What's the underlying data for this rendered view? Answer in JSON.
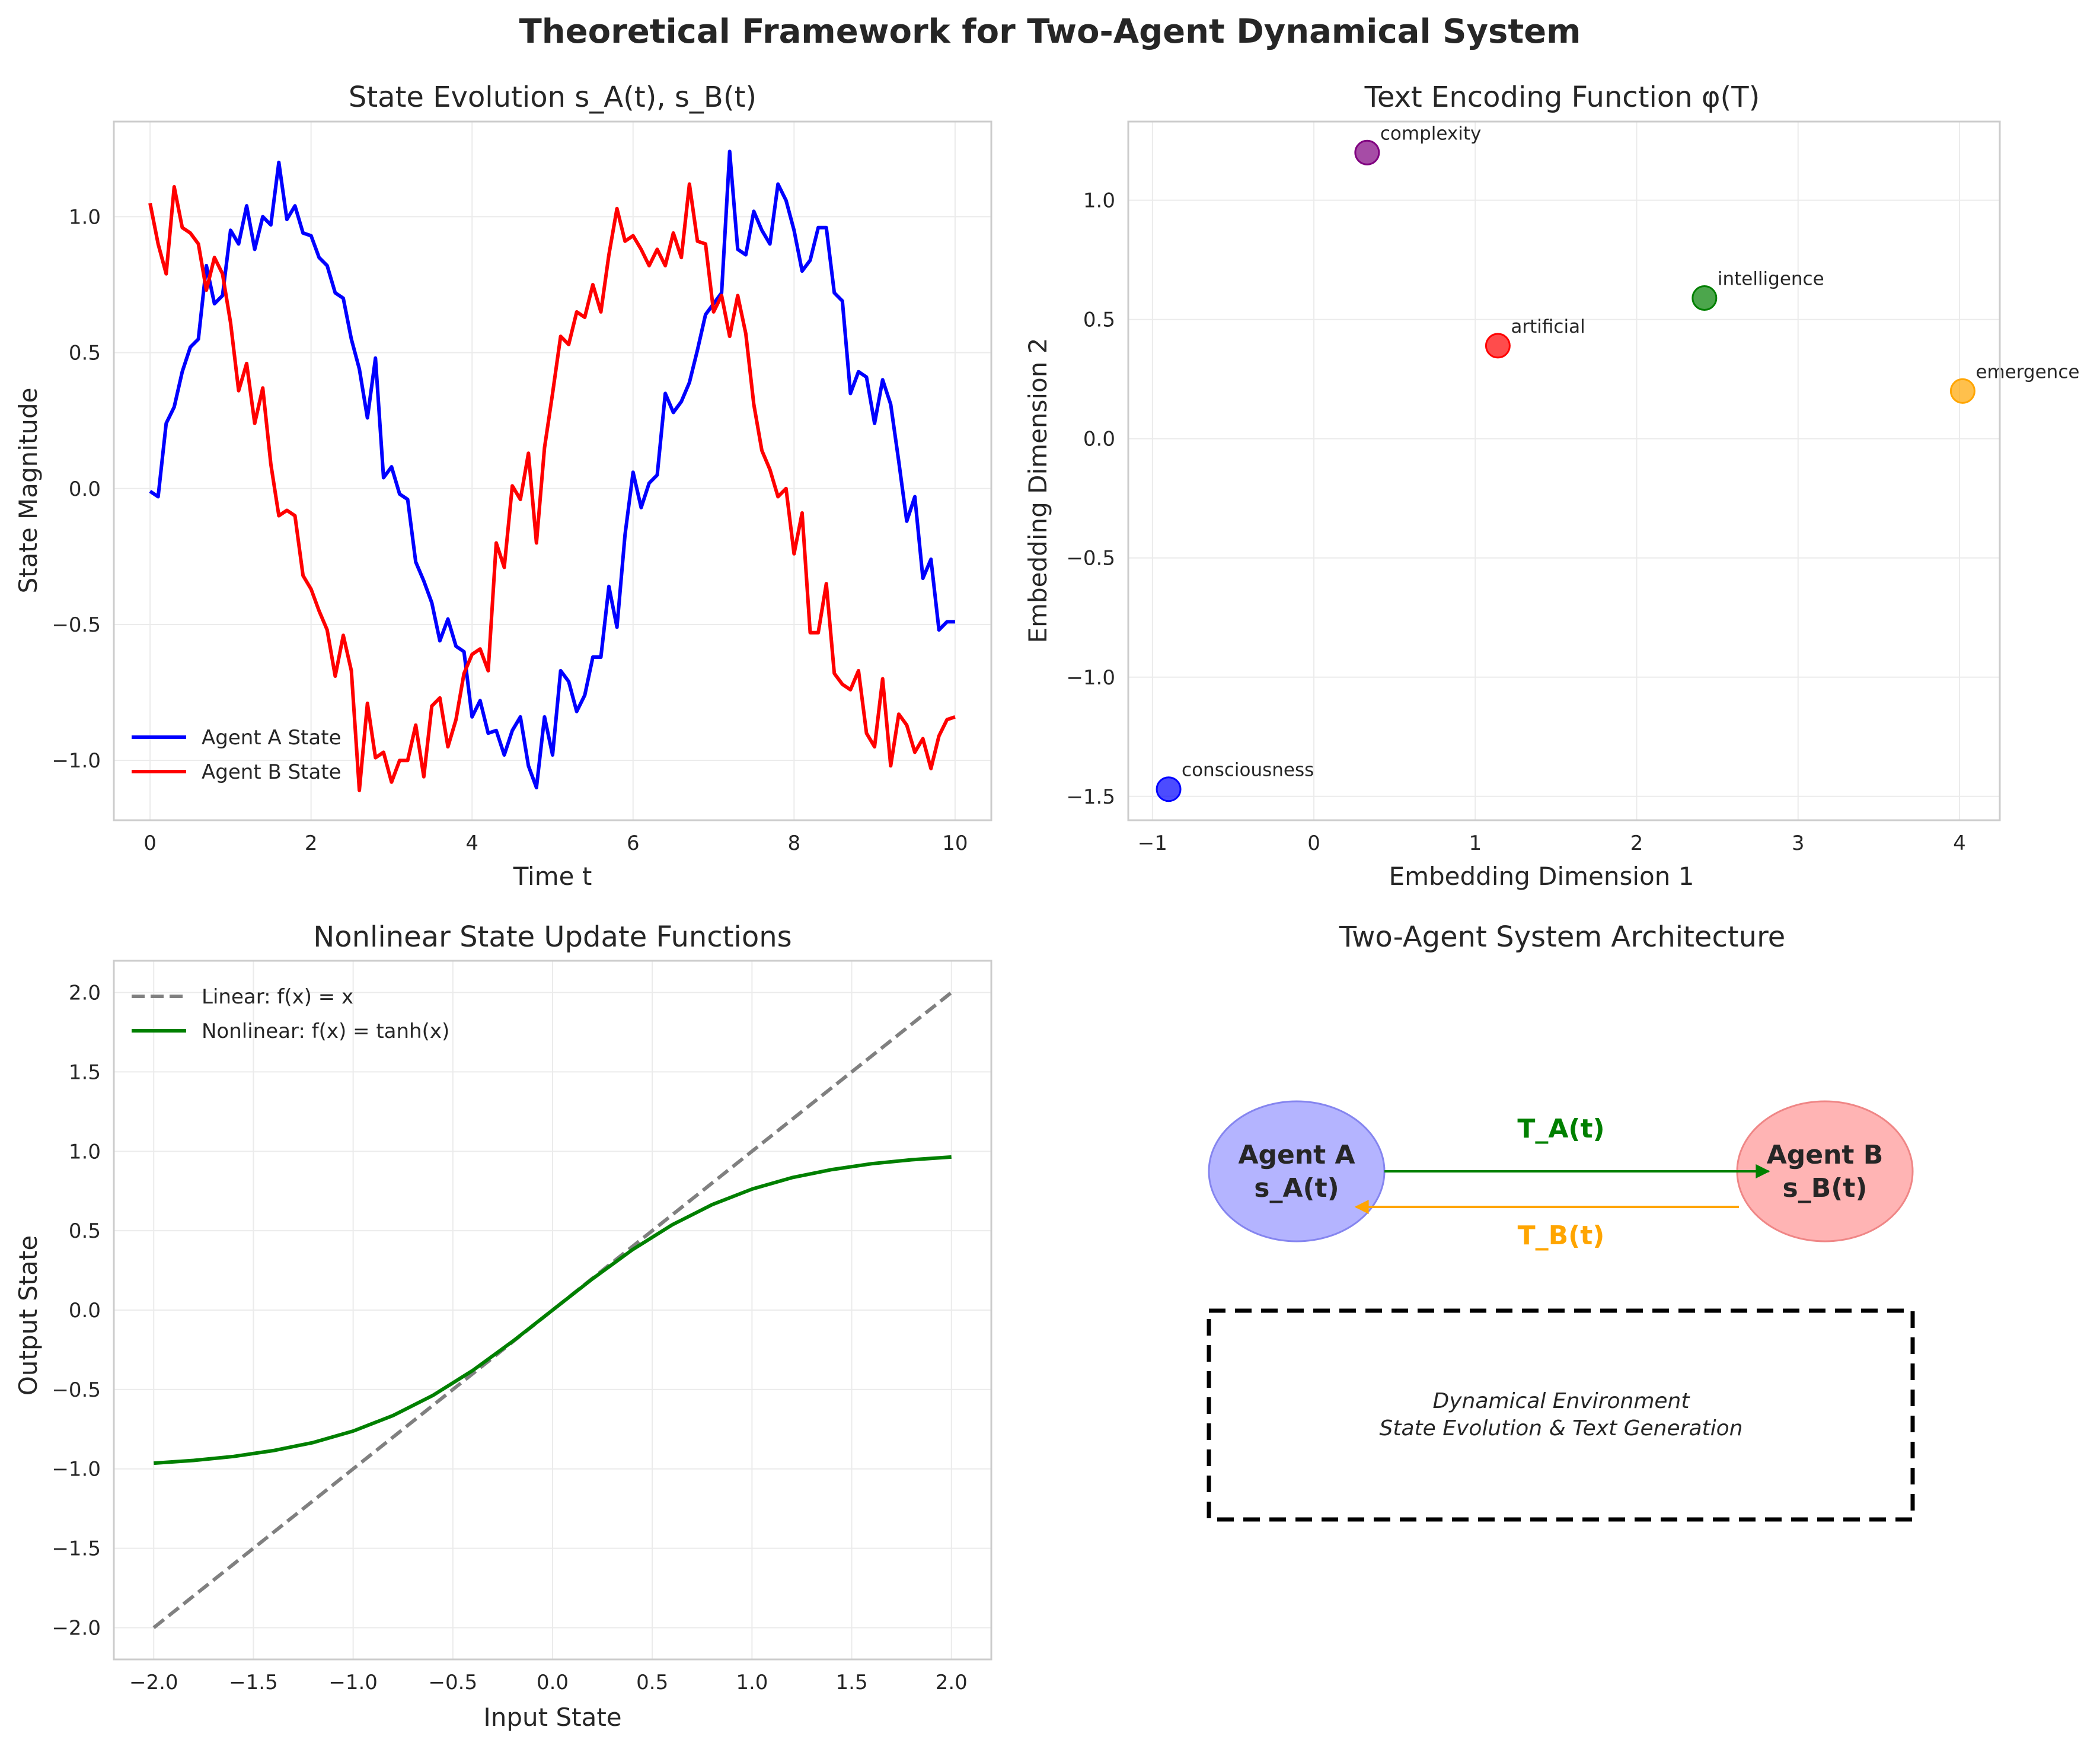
{
  "suptitle": "Theoretical Framework for Two-Agent Dynamical System",
  "chart_data": [
    {
      "id": "state",
      "type": "line",
      "title": "State Evolution s_A(t), s_B(t)",
      "xlabel": "Time t",
      "ylabel": "State Magnitude",
      "xlim": [
        -0.45,
        10.45
      ],
      "ylim": [
        -1.22,
        1.35
      ],
      "xticks": [
        0,
        2,
        4,
        6,
        8,
        10
      ],
      "yticks": [
        -1.0,
        -0.5,
        0.0,
        0.5,
        1.0
      ],
      "grid": true,
      "legend": "lower-left",
      "series": [
        {
          "name": "Agent A State",
          "color": "#0000ff",
          "x": [
            0.0,
            0.1,
            0.2,
            0.3,
            0.4,
            0.5,
            0.6,
            0.7,
            0.8,
            0.9,
            1.0,
            1.1,
            1.2,
            1.3,
            1.4,
            1.5,
            1.6,
            1.7,
            1.8,
            1.9,
            2.0,
            2.1,
            2.2,
            2.3,
            2.4,
            2.5,
            2.6,
            2.7,
            2.8,
            2.9,
            3.0,
            3.1,
            3.2,
            3.3,
            3.4,
            3.5,
            3.6,
            3.7,
            3.8,
            3.9,
            4.0,
            4.1,
            4.2,
            4.3,
            4.4,
            4.5,
            4.6,
            4.7,
            4.8,
            4.9,
            5.0,
            5.1,
            5.2,
            5.3,
            5.4,
            5.5,
            5.6,
            5.7,
            5.8,
            5.9,
            6.0,
            6.1,
            6.2,
            6.3,
            6.4,
            6.5,
            6.6,
            6.7,
            6.8,
            6.9,
            7.0,
            7.1,
            7.2,
            7.3,
            7.4,
            7.5,
            7.6,
            7.7,
            7.8,
            7.9,
            8.0,
            8.1,
            8.2,
            8.3,
            8.4,
            8.5,
            8.6,
            8.7,
            8.8,
            8.9,
            9.0,
            9.1,
            9.2,
            9.3,
            9.4,
            9.5,
            9.6,
            9.7,
            9.8,
            9.9,
            10.0
          ],
          "y": [
            -0.01,
            -0.03,
            0.24,
            0.3,
            0.43,
            0.52,
            0.55,
            0.82,
            0.68,
            0.71,
            0.95,
            0.9,
            1.04,
            0.88,
            1.0,
            0.97,
            1.2,
            0.99,
            1.04,
            0.94,
            0.93,
            0.85,
            0.82,
            0.72,
            0.7,
            0.55,
            0.44,
            0.26,
            0.48,
            0.04,
            0.08,
            -0.02,
            -0.04,
            -0.27,
            -0.34,
            -0.42,
            -0.56,
            -0.48,
            -0.58,
            -0.6,
            -0.84,
            -0.78,
            -0.9,
            -0.89,
            -0.98,
            -0.89,
            -0.84,
            -1.02,
            -1.1,
            -0.84,
            -0.98,
            -0.67,
            -0.71,
            -0.82,
            -0.76,
            -0.62,
            -0.62,
            -0.36,
            -0.51,
            -0.17,
            0.06,
            -0.07,
            0.02,
            0.05,
            0.35,
            0.28,
            0.32,
            0.39,
            0.51,
            0.64,
            0.68,
            0.72,
            1.24,
            0.88,
            0.86,
            1.02,
            0.95,
            0.9,
            1.12,
            1.06,
            0.95,
            0.8,
            0.84,
            0.96,
            0.96,
            0.72,
            0.69,
            0.35,
            0.43,
            0.41,
            0.24,
            0.4,
            0.31,
            0.1,
            -0.12,
            -0.03,
            -0.33,
            -0.26,
            -0.52,
            -0.49,
            -0.49
          ]
        },
        {
          "name": "Agent B State",
          "color": "#ff0000",
          "x": [
            0.0,
            0.1,
            0.2,
            0.3,
            0.4,
            0.5,
            0.6,
            0.7,
            0.8,
            0.9,
            1.0,
            1.1,
            1.2,
            1.3,
            1.4,
            1.5,
            1.6,
            1.7,
            1.8,
            1.9,
            2.0,
            2.1,
            2.2,
            2.3,
            2.4,
            2.5,
            2.6,
            2.7,
            2.8,
            2.9,
            3.0,
            3.1,
            3.2,
            3.3,
            3.4,
            3.5,
            3.6,
            3.7,
            3.8,
            3.9,
            4.0,
            4.1,
            4.2,
            4.3,
            4.4,
            4.5,
            4.6,
            4.7,
            4.8,
            4.9,
            5.0,
            5.1,
            5.2,
            5.3,
            5.4,
            5.5,
            5.6,
            5.7,
            5.8,
            5.9,
            6.0,
            6.1,
            6.2,
            6.3,
            6.4,
            6.5,
            6.6,
            6.7,
            6.8,
            6.9,
            7.0,
            7.1,
            7.2,
            7.3,
            7.4,
            7.5,
            7.6,
            7.7,
            7.8,
            7.9,
            8.0,
            8.1,
            8.2,
            8.3,
            8.4,
            8.5,
            8.6,
            8.7,
            8.8,
            8.9,
            9.0,
            9.1,
            9.2,
            9.3,
            9.4,
            9.5,
            9.6,
            9.7,
            9.8,
            9.9,
            10.0
          ],
          "y": [
            1.05,
            0.9,
            0.79,
            1.11,
            0.96,
            0.94,
            0.9,
            0.73,
            0.85,
            0.79,
            0.61,
            0.36,
            0.46,
            0.24,
            0.37,
            0.09,
            -0.1,
            -0.08,
            -0.1,
            -0.32,
            -0.37,
            -0.45,
            -0.52,
            -0.69,
            -0.54,
            -0.67,
            -1.11,
            -0.79,
            -0.99,
            -0.97,
            -1.08,
            -1.0,
            -1.0,
            -0.87,
            -1.06,
            -0.8,
            -0.77,
            -0.95,
            -0.85,
            -0.68,
            -0.61,
            -0.59,
            -0.67,
            -0.2,
            -0.29,
            0.01,
            -0.04,
            0.13,
            -0.2,
            0.15,
            0.35,
            0.56,
            0.53,
            0.65,
            0.63,
            0.75,
            0.65,
            0.86,
            1.03,
            0.91,
            0.93,
            0.88,
            0.82,
            0.88,
            0.82,
            0.94,
            0.85,
            1.12,
            0.91,
            0.9,
            0.65,
            0.71,
            0.56,
            0.71,
            0.57,
            0.31,
            0.14,
            0.07,
            -0.03,
            0.0,
            -0.24,
            -0.09,
            -0.53,
            -0.53,
            -0.35,
            -0.68,
            -0.72,
            -0.74,
            -0.67,
            -0.9,
            -0.95,
            -0.7,
            -1.02,
            -0.83,
            -0.87,
            -0.97,
            -0.92,
            -1.03,
            -0.91,
            -0.85,
            -0.84
          ]
        }
      ]
    },
    {
      "id": "embed",
      "type": "scatter",
      "title": "Text Encoding Function φ(T)",
      "xlabel": "Embedding Dimension 1",
      "ylabel": "Embedding Dimension 2",
      "xlim": [
        -1.15,
        4.25
      ],
      "ylim": [
        -1.6,
        1.33
      ],
      "xticks": [
        -1,
        0,
        1,
        2,
        3,
        4
      ],
      "yticks": [
        -1.5,
        -1.0,
        -0.5,
        0.0,
        0.5,
        1.0
      ],
      "grid": true,
      "points": [
        {
          "label": "consciousness",
          "x": -0.9,
          "y": -1.47,
          "color": "#0000ff"
        },
        {
          "label": "emergence",
          "x": 4.02,
          "y": 0.2,
          "color": "#ffa500"
        },
        {
          "label": "artificial",
          "x": 1.14,
          "y": 0.39,
          "color": "#ff0000"
        },
        {
          "label": "intelligence",
          "x": 2.42,
          "y": 0.59,
          "color": "#008000"
        },
        {
          "label": "complexity",
          "x": 0.33,
          "y": 1.2,
          "color": "#800080"
        }
      ]
    },
    {
      "id": "update",
      "type": "line",
      "title": "Nonlinear State Update Functions",
      "xlabel": "Input State",
      "ylabel": "Output State",
      "xlim": [
        -2.2,
        2.2
      ],
      "ylim": [
        -2.2,
        2.2
      ],
      "xticks": [
        -2.0,
        -1.5,
        -1.0,
        -0.5,
        0.0,
        0.5,
        1.0,
        1.5,
        2.0
      ],
      "yticks": [
        -2.0,
        -1.5,
        -1.0,
        -0.5,
        0.0,
        0.5,
        1.0,
        1.5,
        2.0
      ],
      "grid": true,
      "legend": "top-left",
      "series": [
        {
          "name": "Linear: f(x) = x",
          "color": "#808080",
          "dash": true,
          "x": [
            -2.0,
            2.0
          ],
          "y": [
            -2.0,
            2.0
          ]
        },
        {
          "name": "Nonlinear: f(x) = tanh(x)",
          "color": "#008000",
          "dash": false,
          "x": [
            -2.0,
            -1.8,
            -1.6,
            -1.4,
            -1.2,
            -1.0,
            -0.8,
            -0.6,
            -0.4,
            -0.2,
            0.0,
            0.2,
            0.4,
            0.6,
            0.8,
            1.0,
            1.2,
            1.4,
            1.6,
            1.8,
            2.0
          ],
          "y": [
            -0.964,
            -0.947,
            -0.922,
            -0.885,
            -0.834,
            -0.762,
            -0.664,
            -0.537,
            -0.38,
            -0.197,
            0.0,
            0.197,
            0.38,
            0.537,
            0.664,
            0.762,
            0.834,
            0.885,
            0.922,
            0.947,
            0.964
          ]
        }
      ]
    }
  ],
  "architecture": {
    "title": "Two-Agent System Architecture",
    "agent_a": {
      "line1": "Agent A",
      "line2": "s_A(t)",
      "fill": "#b0b0ff",
      "stroke": "#7f7fef"
    },
    "agent_b": {
      "line1": "Agent B",
      "line2": "s_B(t)",
      "fill": "#ffb0b0",
      "stroke": "#ef8080"
    },
    "edge_ab": {
      "label": "T_A(t)",
      "color": "#008000"
    },
    "edge_ba": {
      "label": "T_B(t)",
      "color": "#ffa500"
    },
    "environment": {
      "line1": "Dynamical Environment",
      "line2": "State Evolution & Text Generation"
    }
  }
}
